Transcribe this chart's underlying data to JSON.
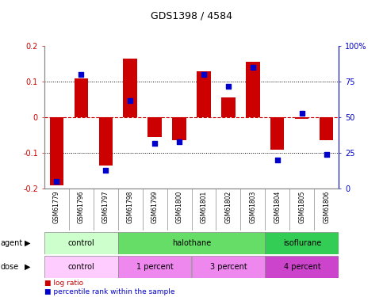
{
  "title": "GDS1398 / 4584",
  "samples": [
    "GSM61779",
    "GSM61796",
    "GSM61797",
    "GSM61798",
    "GSM61799",
    "GSM61800",
    "GSM61801",
    "GSM61802",
    "GSM61803",
    "GSM61804",
    "GSM61805",
    "GSM61806"
  ],
  "log_ratio": [
    -0.19,
    0.11,
    -0.135,
    0.165,
    -0.055,
    -0.065,
    0.13,
    0.055,
    0.155,
    -0.09,
    -0.005,
    -0.065
  ],
  "percentile_rank": [
    5,
    80,
    13,
    62,
    32,
    33,
    80,
    72,
    85,
    20,
    53,
    24
  ],
  "bar_color": "#cc0000",
  "dot_color": "#0000cc",
  "ylim": [
    -0.2,
    0.2
  ],
  "yticks": [
    -0.2,
    -0.1,
    0.0,
    0.1,
    0.2
  ],
  "ytick_labels": [
    "-0.2",
    "-0.1",
    "0",
    "0.1",
    "0.2"
  ],
  "right_yticks": [
    0,
    25,
    50,
    75,
    100
  ],
  "right_ytick_labels": [
    "0",
    "25",
    "50",
    "75",
    "100%"
  ],
  "hline_y": [
    0.1,
    0.0,
    -0.1
  ],
  "agent_groups": [
    {
      "label": "control",
      "start": 0,
      "end": 3,
      "color": "#ccffcc"
    },
    {
      "label": "halothane",
      "start": 3,
      "end": 9,
      "color": "#66dd66"
    },
    {
      "label": "isoflurane",
      "start": 9,
      "end": 12,
      "color": "#33cc55"
    }
  ],
  "dose_groups": [
    {
      "label": "control",
      "start": 0,
      "end": 3,
      "color": "#ffccff"
    },
    {
      "label": "1 percent",
      "start": 3,
      "end": 6,
      "color": "#ee88ee"
    },
    {
      "label": "3 percent",
      "start": 6,
      "end": 9,
      "color": "#ee88ee"
    },
    {
      "label": "4 percent",
      "start": 9,
      "end": 12,
      "color": "#cc44cc"
    }
  ],
  "legend_items": [
    {
      "label": "log ratio",
      "color": "#cc0000"
    },
    {
      "label": "percentile rank within the sample",
      "color": "#0000cc"
    }
  ],
  "left_axis_color": "#cc0000",
  "right_axis_color": "#0000cc",
  "background_color": "#ffffff",
  "bar_width": 0.55,
  "xtick_bg_color": "#cccccc",
  "border_color": "#888888"
}
